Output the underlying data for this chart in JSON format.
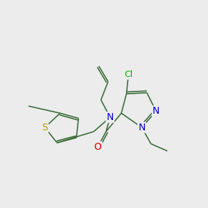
{
  "background_color": "#ececec",
  "bond_color": "#3a6b3a",
  "atoms": {
    "S": {
      "color": "#b8a000",
      "fontsize": 10
    },
    "N": {
      "color": "#0000cc",
      "fontsize": 10
    },
    "O": {
      "color": "#cc0000",
      "fontsize": 10
    },
    "Cl": {
      "color": "#00aa00",
      "fontsize": 9
    },
    "C": {
      "color": "#3a6b3a",
      "fontsize": 9
    }
  },
  "figsize": [
    3.0,
    3.0
  ],
  "dpi": 100
}
